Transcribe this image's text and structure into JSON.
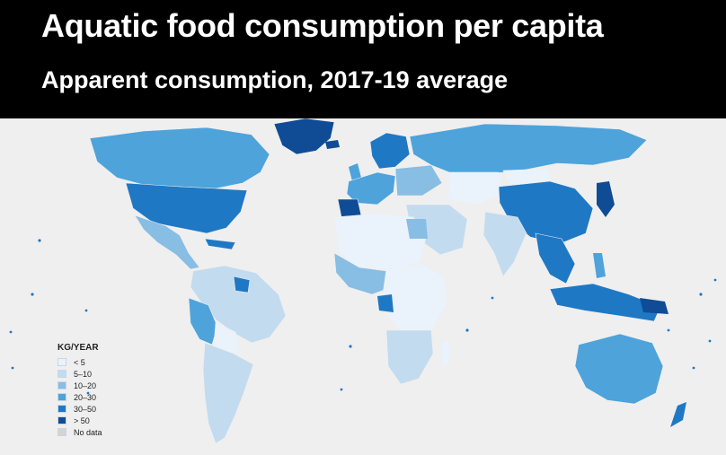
{
  "header": {
    "title": "Aquatic food consumption per capita",
    "subtitle": "Apparent consumption, 2017-19 average"
  },
  "legend": {
    "title": "KG/YEAR",
    "items": [
      {
        "label": "< 5",
        "color": "#eaf2fb"
      },
      {
        "label": "5–10",
        "color": "#c3dbef"
      },
      {
        "label": "10–20",
        "color": "#88bde4"
      },
      {
        "label": "20–30",
        "color": "#4ea3db"
      },
      {
        "label": "30–50",
        "color": "#1f78c4"
      },
      {
        "label": "> 50",
        "color": "#0f4c95"
      },
      {
        "label": "No data",
        "color": "#d4d4d4"
      }
    ]
  },
  "colors": {
    "background": "#efefef",
    "ocean_dots": "#1f78c4"
  }
}
